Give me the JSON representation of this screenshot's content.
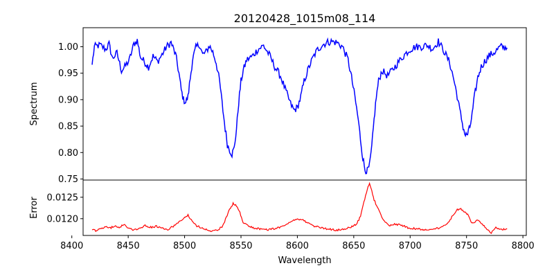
{
  "chart_data": [
    {
      "type": "line",
      "title": "20120428_1015m08_114",
      "ylabel": "Spectrum",
      "xlim": [
        8410,
        8803
      ],
      "ylim": [
        0.748,
        1.036
      ],
      "yticks": [
        0.75,
        0.8,
        0.85,
        0.9,
        0.95,
        1.0
      ],
      "ytick_labels": [
        "0.75",
        "0.80",
        "0.85",
        "0.90",
        "0.95",
        "1.00"
      ],
      "series": [
        {
          "color": "#0000ff",
          "x": [
            8418,
            8420,
            8425,
            8430,
            8433,
            8436,
            8440,
            8444,
            8447,
            8451,
            8455,
            8458,
            8461,
            8465,
            8468,
            8472,
            8476,
            8480,
            8484,
            8488,
            8492,
            8495,
            8497,
            8499,
            8501,
            8503,
            8505,
            8507,
            8510,
            8513,
            8516,
            8519,
            8522,
            8525,
            8528,
            8531,
            8534,
            8536,
            8538,
            8540,
            8542,
            8544,
            8546,
            8548,
            8550,
            8552,
            8555,
            8560,
            8565,
            8570,
            8575,
            8580,
            8585,
            8590,
            8594,
            8597,
            8600,
            8603,
            8606,
            8610,
            8614,
            8618,
            8622,
            8626,
            8630,
            8635,
            8640,
            8645,
            8648,
            8651,
            8654,
            8656,
            8658,
            8660,
            8662,
            8664,
            8666,
            8668,
            8670,
            8672,
            8675,
            8680,
            8685,
            8690,
            8695,
            8700,
            8705,
            8710,
            8715,
            8720,
            8725,
            8730,
            8735,
            8738,
            8741,
            8744,
            8747,
            8749,
            8751,
            8753,
            8755,
            8757,
            8760,
            8763,
            8766,
            8770,
            8775,
            8780,
            8786
          ],
          "y": [
            0.966,
            1.0,
            1.003,
            0.995,
            1.005,
            0.978,
            0.988,
            0.955,
            0.962,
            0.975,
            1.005,
            1.012,
            0.98,
            0.97,
            0.962,
            0.982,
            0.972,
            0.985,
            1.0,
            1.008,
            0.985,
            0.95,
            0.918,
            0.9,
            0.895,
            0.905,
            0.94,
            0.975,
            0.998,
            1.005,
            0.985,
            0.99,
            1.002,
            0.99,
            0.97,
            0.935,
            0.88,
            0.845,
            0.815,
            0.805,
            0.797,
            0.808,
            0.845,
            0.895,
            0.935,
            0.955,
            0.975,
            0.982,
            0.995,
            1.002,
            0.985,
            0.962,
            0.945,
            0.915,
            0.892,
            0.88,
            0.885,
            0.905,
            0.935,
            0.96,
            0.98,
            0.995,
            1.003,
            1.008,
            1.01,
            1.008,
            1.0,
            0.975,
            0.942,
            0.905,
            0.862,
            0.825,
            0.79,
            0.768,
            0.765,
            0.775,
            0.81,
            0.862,
            0.905,
            0.935,
            0.955,
            0.945,
            0.958,
            0.972,
            0.985,
            0.995,
            1.0,
            1.0,
            1.003,
            0.996,
            1.01,
            0.992,
            0.97,
            0.945,
            0.915,
            0.88,
            0.848,
            0.832,
            0.835,
            0.848,
            0.872,
            0.905,
            0.942,
            0.962,
            0.972,
            0.983,
            0.99,
            1.0,
            0.998
          ]
        }
      ]
    },
    {
      "type": "line",
      "xlabel": "Wavelength",
      "ylabel": "Error",
      "xlim": [
        8410,
        8803
      ],
      "ylim": [
        0.011609,
        0.012901
      ],
      "xticks": [
        8400,
        8450,
        8500,
        8550,
        8600,
        8650,
        8700,
        8750,
        8800
      ],
      "xtick_labels": [
        "8400",
        "8450",
        "8500",
        "8550",
        "8600",
        "8650",
        "8700",
        "8750",
        "8800"
      ],
      "yticks": [
        0.012,
        0.0125
      ],
      "ytick_labels": [
        "0.0120",
        "0.0125"
      ],
      "series": [
        {
          "color": "#ff0000",
          "x": [
            8418,
            8422,
            8426,
            8430,
            8434,
            8438,
            8442,
            8446,
            8450,
            8455,
            8460,
            8465,
            8470,
            8475,
            8480,
            8485,
            8490,
            8495,
            8500,
            8503,
            8506,
            8510,
            8515,
            8520,
            8525,
            8530,
            8534,
            8537,
            8540,
            8543,
            8546,
            8549,
            8552,
            8556,
            8560,
            8565,
            8570,
            8575,
            8580,
            8585,
            8590,
            8595,
            8600,
            8605,
            8610,
            8615,
            8620,
            8625,
            8630,
            8635,
            8640,
            8645,
            8650,
            8653,
            8656,
            8659,
            8662,
            8664,
            8666,
            8668,
            8671,
            8674,
            8678,
            8682,
            8687,
            8692,
            8698,
            8704,
            8710,
            8716,
            8722,
            8728,
            8733,
            8737,
            8741,
            8745,
            8748,
            8751,
            8754,
            8757,
            8760,
            8764,
            8768,
            8772,
            8776,
            8780,
            8786
          ],
          "y": [
            0.01174,
            0.01172,
            0.01176,
            0.01181,
            0.01178,
            0.01183,
            0.0118,
            0.01186,
            0.01179,
            0.01174,
            0.01177,
            0.01184,
            0.0118,
            0.01182,
            0.01177,
            0.01175,
            0.01182,
            0.01193,
            0.01202,
            0.01208,
            0.01196,
            0.01184,
            0.01179,
            0.01174,
            0.01171,
            0.01175,
            0.01183,
            0.01203,
            0.01222,
            0.01235,
            0.0123,
            0.01214,
            0.01191,
            0.01183,
            0.01179,
            0.01177,
            0.01175,
            0.01174,
            0.01177,
            0.0118,
            0.01188,
            0.01194,
            0.01199,
            0.01196,
            0.01189,
            0.01183,
            0.01179,
            0.01177,
            0.01175,
            0.01173,
            0.01175,
            0.01178,
            0.01183,
            0.0119,
            0.01206,
            0.01238,
            0.0127,
            0.01284,
            0.01264,
            0.01244,
            0.01227,
            0.01208,
            0.01191,
            0.01185,
            0.01187,
            0.01185,
            0.01179,
            0.01177,
            0.01175,
            0.01173,
            0.01176,
            0.0118,
            0.01189,
            0.01204,
            0.0122,
            0.01222,
            0.01216,
            0.01209,
            0.01193,
            0.0119,
            0.01197,
            0.01186,
            0.01176,
            0.01167,
            0.01179,
            0.01174,
            0.01176
          ]
        }
      ]
    }
  ]
}
